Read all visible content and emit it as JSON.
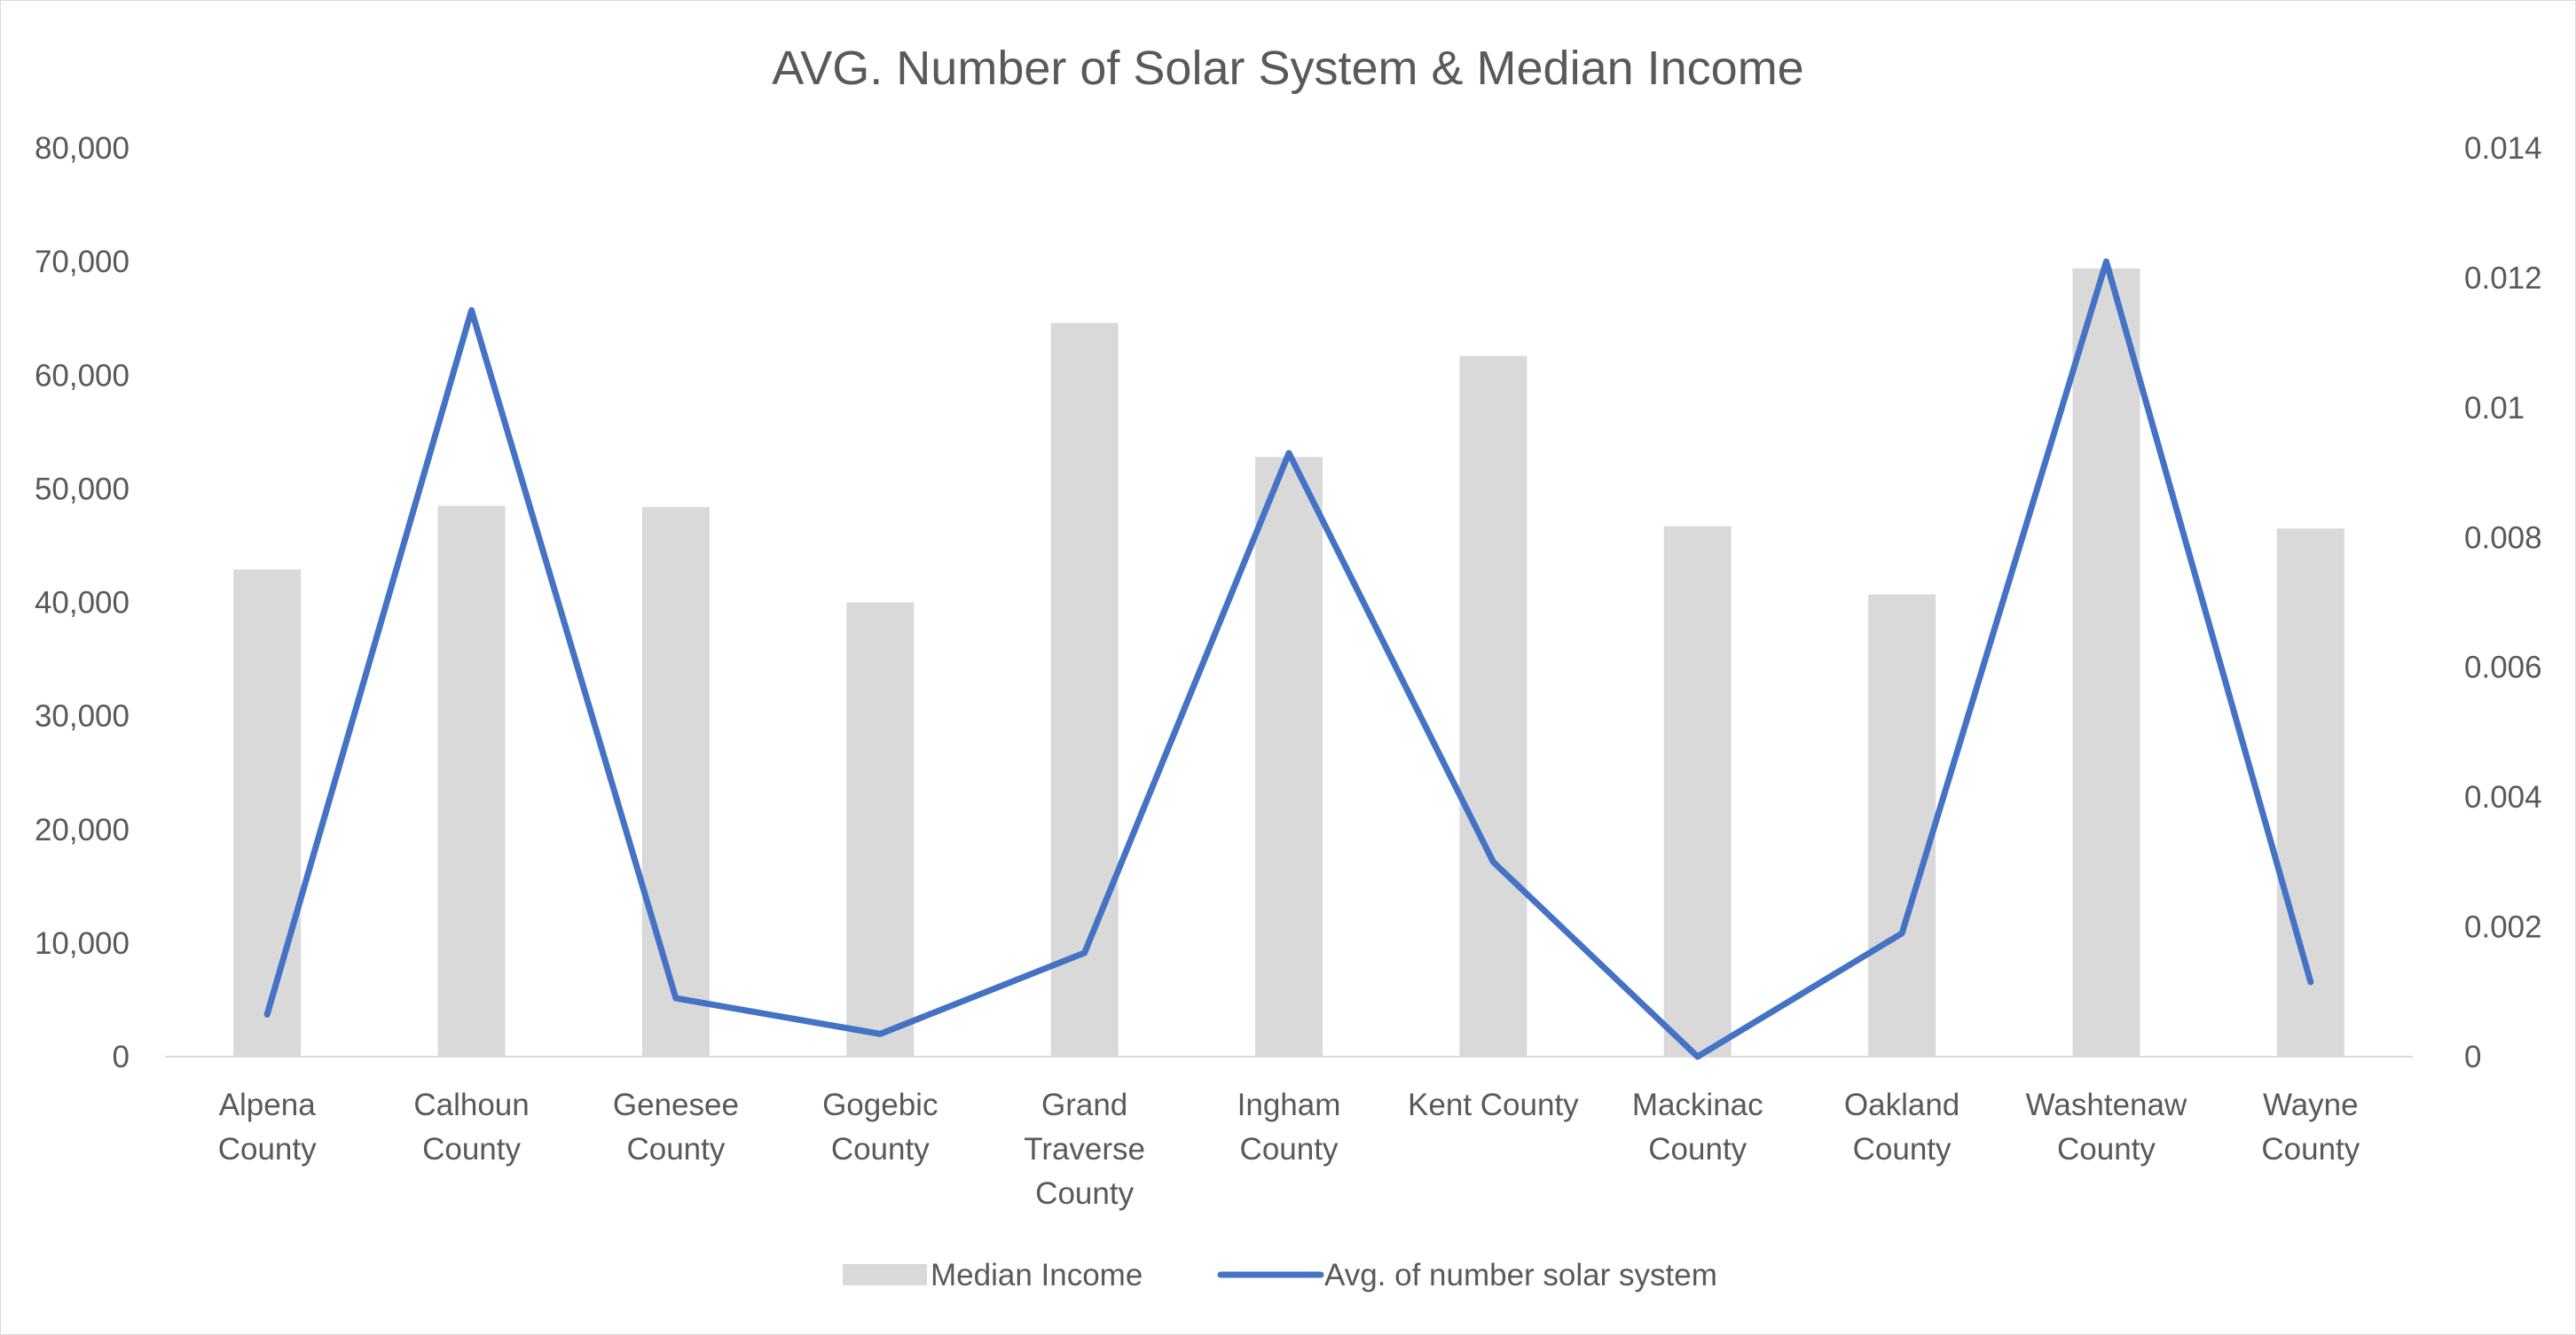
{
  "chart_data": {
    "type": "bar",
    "title": "AVG. Number of Solar System & Median Income",
    "categories": [
      [
        "Alpena",
        "County"
      ],
      [
        "Calhoun",
        "County"
      ],
      [
        "Genesee",
        "County"
      ],
      [
        "Gogebic",
        "County"
      ],
      [
        "Grand",
        "Traverse",
        "County"
      ],
      [
        "Ingham",
        "County"
      ],
      [
        "Kent County"
      ],
      [
        "Mackinac",
        "County"
      ],
      [
        "Oakland",
        "County"
      ],
      [
        "Washtenaw",
        "County"
      ],
      [
        "Wayne",
        "County"
      ]
    ],
    "series": [
      {
        "name": "Median Income",
        "type": "bar",
        "axis": "left",
        "color": "#d9d9d9",
        "values": [
          42900,
          48500,
          48400,
          40000,
          64600,
          52800,
          61700,
          46700,
          40700,
          69400,
          46500
        ]
      },
      {
        "name": "Avg. of number solar system",
        "type": "line",
        "axis": "right",
        "color": "#4472c4",
        "values": [
          0.00065,
          0.0115,
          0.0009,
          0.00035,
          0.0016,
          0.0093,
          0.003,
          0.0,
          0.0019,
          0.01225,
          0.00115
        ]
      }
    ],
    "y_left": {
      "ylim": [
        0,
        80000
      ],
      "ticks": [
        "0",
        "10,000",
        "20,000",
        "30,000",
        "40,000",
        "50,000",
        "60,000",
        "70,000",
        "80,000"
      ]
    },
    "y_right": {
      "ylim": [
        0,
        0.014
      ],
      "ticks": [
        "0",
        "0.002",
        "0.004",
        "0.006",
        "0.008",
        "0.01",
        "0.012",
        "0.014"
      ]
    },
    "grid": false,
    "legend": "bottom"
  }
}
